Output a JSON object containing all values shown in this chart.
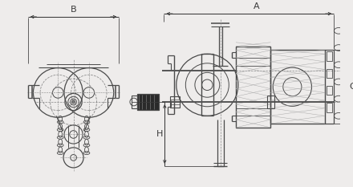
{
  "bg_color": "#eeeceb",
  "line_color": "#4a4a4a",
  "dim_color": "#3a3a3a",
  "dashed_color": "#888888",
  "labels": {
    "A": "A",
    "B": "B",
    "C": "C",
    "H": "H"
  },
  "figsize": [
    4.4,
    2.33
  ],
  "dpi": 100
}
